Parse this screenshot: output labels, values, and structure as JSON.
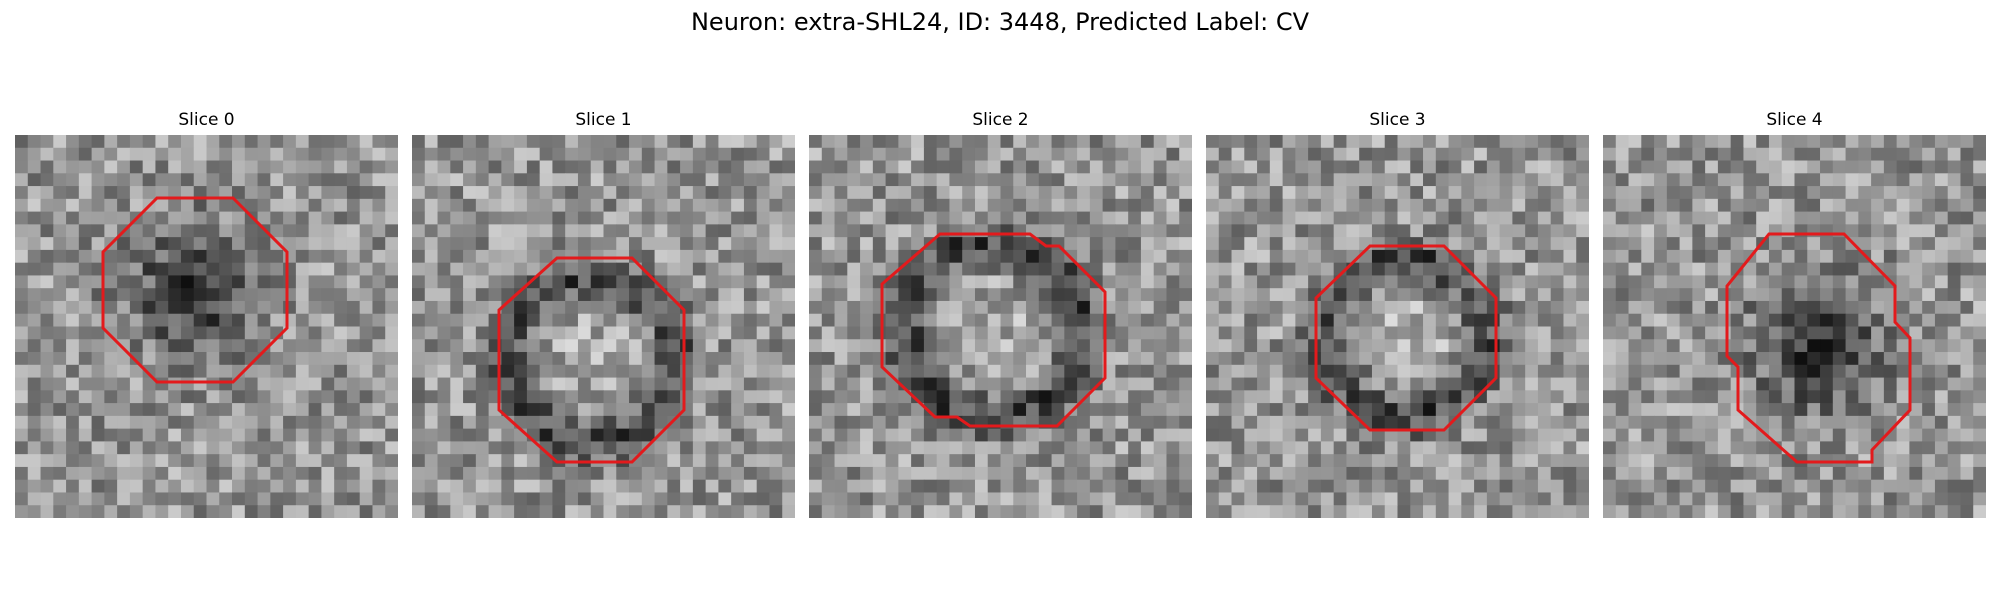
{
  "figure": {
    "title": "Neuron: extra-SHL24, ID: 3448, Predicted Label: CV"
  },
  "panels": [
    {
      "title": "Slice 0",
      "pattern": "dark-blob"
    },
    {
      "title": "Slice 1",
      "pattern": "dark-ring"
    },
    {
      "title": "Slice 2",
      "pattern": "dark-ring"
    },
    {
      "title": "Slice 3",
      "pattern": "dark-ring"
    },
    {
      "title": "Slice 4",
      "pattern": "dark-blob"
    }
  ],
  "colors": {
    "outline": "#e31a1c"
  }
}
